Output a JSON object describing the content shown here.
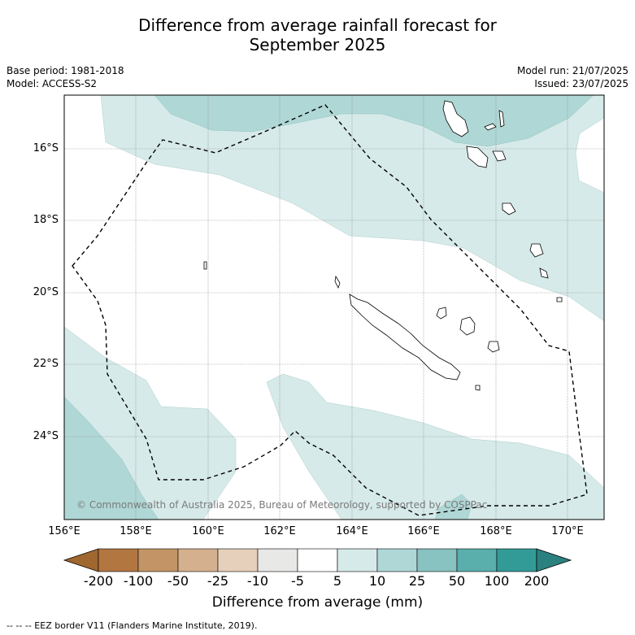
{
  "title_line1": "Difference from average rainfall forecast for",
  "title_line2": "September 2025",
  "base_period": "Base period: 1981-2018",
  "model": "Model: ACCESS-S2",
  "model_run": "Model run: 21/07/2025",
  "issued": "Issued: 23/07/2025",
  "copyright": "© Commonwealth of Australia 2025, Bureau of Meteorology, supported by COSPPac",
  "lat_labels": [
    "16°S",
    "18°S",
    "20°S",
    "22°S",
    "24°S"
  ],
  "lon_labels": [
    "156°E",
    "158°E",
    "160°E",
    "162°E",
    "164°E",
    "166°E",
    "168°E",
    "170°E"
  ],
  "colorbar": {
    "title": "Difference from average (mm)",
    "ticks": [
      "-200",
      "-100",
      "-50",
      "-25",
      "-10",
      "-5",
      "5",
      "10",
      "25",
      "50",
      "100",
      "200"
    ],
    "colors": [
      "#a0672f",
      "#b27641",
      "#c39465",
      "#d5b08f",
      "#e6d0bb",
      "#e8e8e6",
      "#ffffff",
      "#d6eae9",
      "#afd7d6",
      "#88c2c1",
      "#5aaeac",
      "#339b97",
      "#2b817f"
    ]
  },
  "footnote": "-- -- -- EEZ border V11 (Flanders Marine Institute, 2019).",
  "legend_item": "EEZ border"
}
